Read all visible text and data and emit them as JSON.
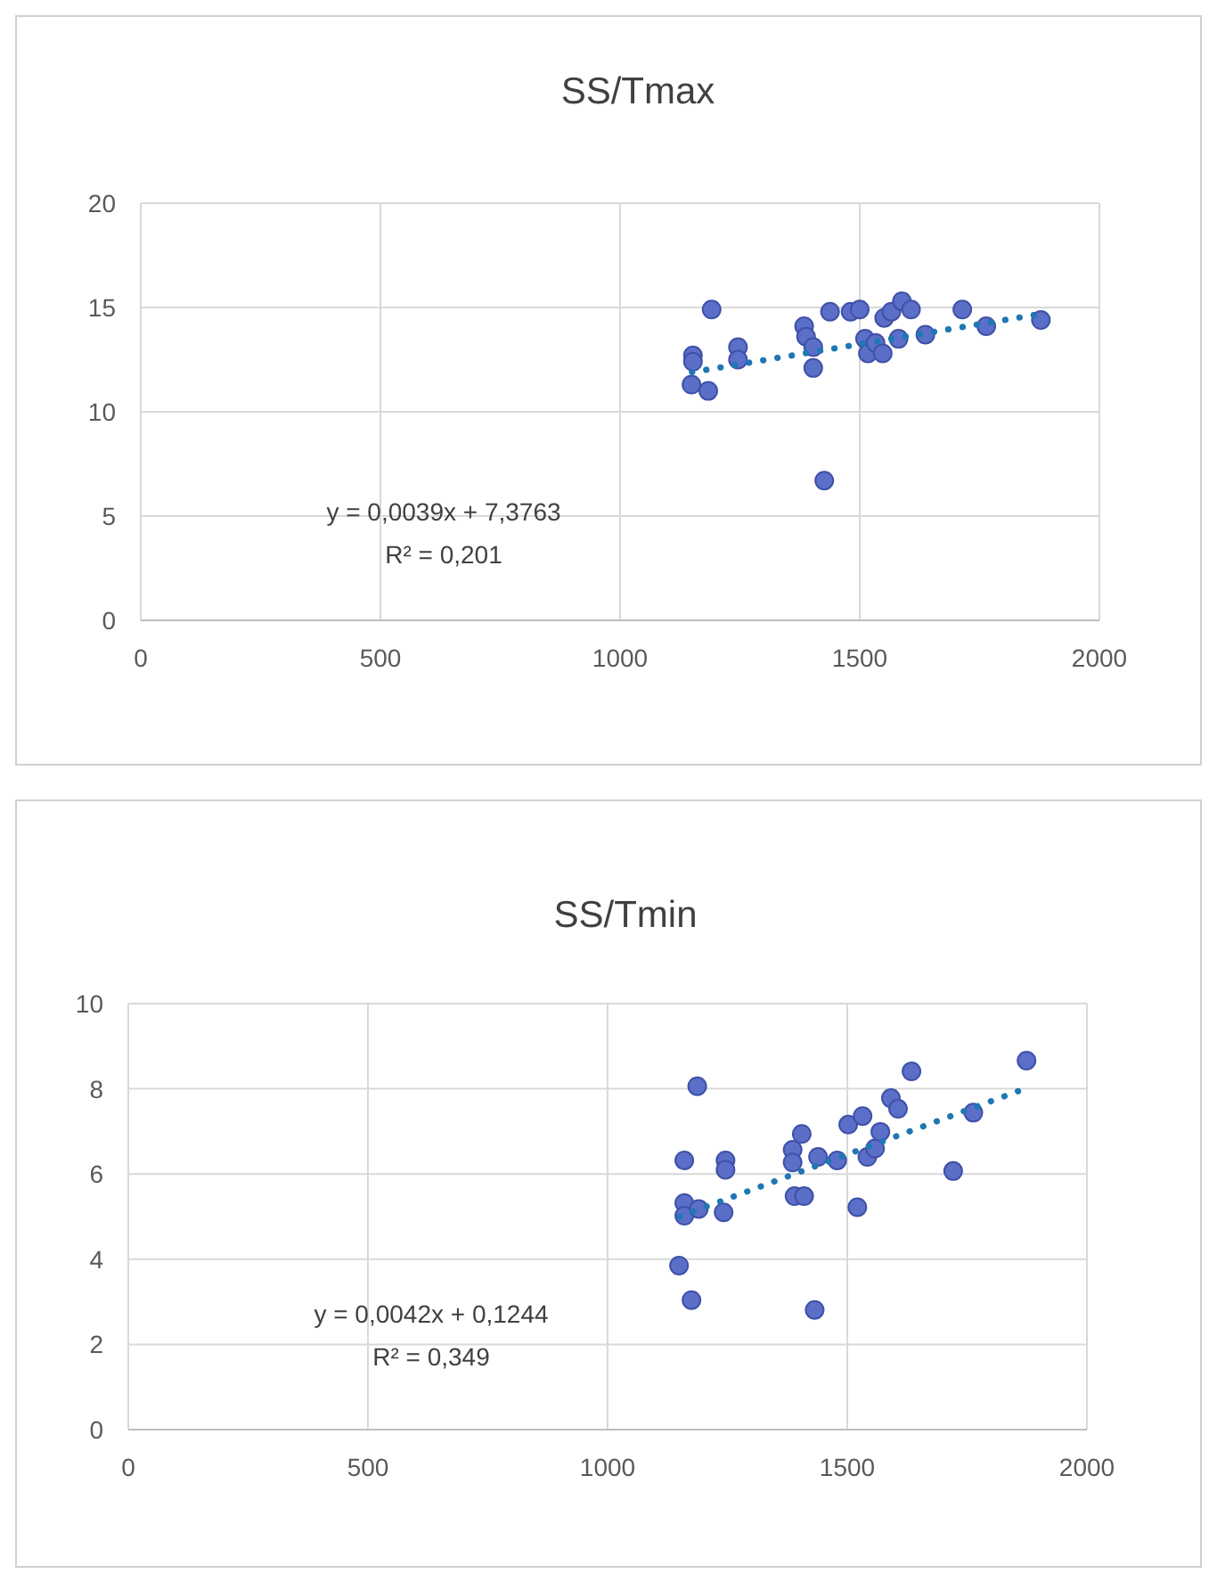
{
  "chart_data": [
    {
      "type": "scatter",
      "title": "SS/Tmax",
      "xlim": [
        0,
        2000
      ],
      "xticks": [
        0,
        500,
        1000,
        1500,
        2000
      ],
      "ylim": [
        0,
        20
      ],
      "yticks": [
        0,
        5,
        10,
        15,
        20
      ],
      "grid": true,
      "marker": "circle",
      "annotations": [
        "y = 0,0039x + 7,3763",
        "R² = 0,201"
      ],
      "series": [
        {
          "color": "#5b6fc8",
          "x": [
            1191,
            1152,
            1152,
            1149,
            1184,
            1246,
            1246,
            1384,
            1388,
            1403,
            1403,
            1426,
            1438,
            1481,
            1500,
            1511,
            1517,
            1533,
            1548,
            1551,
            1566,
            1588,
            1607,
            1581,
            1637,
            1714,
            1764,
            1878
          ],
          "values": [
            14.9,
            12.7,
            12.4,
            11.3,
            11.0,
            13.1,
            12.5,
            14.1,
            13.6,
            13.1,
            12.1,
            6.7,
            14.8,
            14.8,
            14.9,
            13.5,
            12.8,
            13.3,
            12.8,
            14.5,
            14.8,
            15.3,
            14.9,
            13.5,
            13.7,
            14.9,
            14.1,
            14.4
          ]
        },
        {
          "type": "line",
          "color": "#1f77b4",
          "line_style": "dotted",
          "marker": "none",
          "x": [
            1150,
            1880
          ],
          "values": [
            11.9,
            14.7
          ]
        }
      ]
    },
    {
      "type": "scatter",
      "title": "SS/Tmin",
      "xlim": [
        0,
        2000
      ],
      "xticks": [
        0,
        500,
        1000,
        1500,
        2000
      ],
      "ylim": [
        0,
        10
      ],
      "yticks": [
        0,
        2,
        4,
        6,
        8,
        10
      ],
      "grid": true,
      "marker": "circle",
      "annotations": [
        "y = 0,0042x + 0,1244",
        "R² = 0,349"
      ],
      "series": [
        {
          "color": "#5b6fc8",
          "x": [
            1187,
            1160,
            1160,
            1160,
            1190,
            1149,
            1175,
            1242,
            1246,
            1246,
            1386,
            1386,
            1390,
            1410,
            1405,
            1432,
            1439,
            1479,
            1502,
            1532,
            1521,
            1542,
            1558,
            1569,
            1591,
            1606,
            1634,
            1721,
            1763,
            1874
          ],
          "values": [
            8.06,
            6.32,
            5.32,
            5.02,
            5.18,
            3.85,
            3.04,
            5.1,
            6.32,
            6.1,
            6.57,
            6.27,
            5.48,
            5.48,
            6.94,
            2.81,
            6.4,
            6.32,
            7.16,
            7.36,
            5.22,
            6.4,
            6.6,
            6.99,
            7.78,
            7.53,
            8.41,
            6.07,
            7.44,
            8.66
          ]
        },
        {
          "type": "line",
          "color": "#1f77b4",
          "line_style": "dotted",
          "marker": "none",
          "x": [
            1150,
            1870
          ],
          "values": [
            5.0,
            8.0
          ]
        }
      ]
    }
  ]
}
